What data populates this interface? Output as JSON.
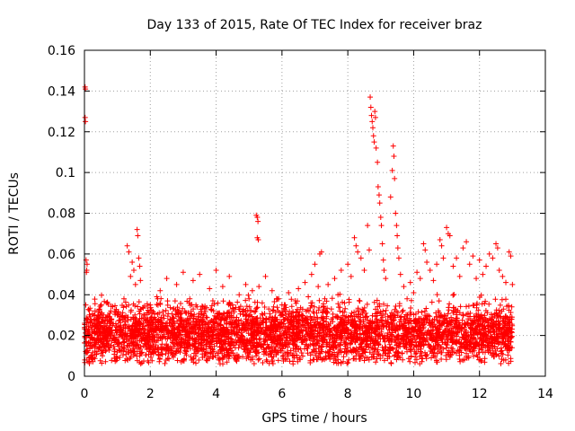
{
  "chart_data": {
    "type": "scatter",
    "title": "Day 133 of 2015, Rate Of TEC Index for receiver braz",
    "xlabel": "GPS time / hours",
    "ylabel": "ROTI / TECUs",
    "xlim": [
      0,
      14
    ],
    "ylim": [
      0,
      0.16
    ],
    "grid": true,
    "marker": "+",
    "color": "#ff0000",
    "x_ticks": [
      {
        "value": 0,
        "label": "0"
      },
      {
        "value": 2,
        "label": "2"
      },
      {
        "value": 4,
        "label": "4"
      },
      {
        "value": 6,
        "label": "6"
      },
      {
        "value": 8,
        "label": "8"
      },
      {
        "value": 10,
        "label": "10"
      },
      {
        "value": 12,
        "label": "12"
      },
      {
        "value": 14,
        "label": "14"
      }
    ],
    "y_ticks": [
      {
        "value": 0,
        "label": "0"
      },
      {
        "value": 0.02,
        "label": "0.02"
      },
      {
        "value": 0.04,
        "label": "0.04"
      },
      {
        "value": 0.06,
        "label": "0.06"
      },
      {
        "value": 0.08,
        "label": "0.08"
      },
      {
        "value": 0.1,
        "label": "0.1"
      },
      {
        "value": 0.12,
        "label": "0.12"
      },
      {
        "value": 0.14,
        "label": "0.14"
      },
      {
        "value": 0.16,
        "label": "0.16"
      }
    ],
    "series": [
      {
        "name": "ROTI",
        "points": [
          [
            0.02,
            0.142
          ],
          [
            0.03,
            0.141
          ],
          [
            0.02,
            0.127
          ],
          [
            0.03,
            0.125
          ],
          [
            0.05,
            0.057
          ],
          [
            0.08,
            0.055
          ],
          [
            0.06,
            0.051
          ],
          [
            0.07,
            0.052
          ],
          [
            0.04,
            0.035
          ],
          [
            0.1,
            0.028
          ],
          [
            0.2,
            0.024
          ],
          [
            0.3,
            0.03
          ],
          [
            0.4,
            0.022
          ],
          [
            0.5,
            0.035
          ],
          [
            0.6,
            0.02
          ],
          [
            0.7,
            0.027
          ],
          [
            0.8,
            0.032
          ],
          [
            0.9,
            0.018
          ],
          [
            1.0,
            0.03
          ],
          [
            1.1,
            0.025
          ],
          [
            1.2,
            0.038
          ],
          [
            1.3,
            0.064
          ],
          [
            1.35,
            0.061
          ],
          [
            1.4,
            0.049
          ],
          [
            1.45,
            0.056
          ],
          [
            1.5,
            0.052
          ],
          [
            1.55,
            0.045
          ],
          [
            1.6,
            0.072
          ],
          [
            1.62,
            0.069
          ],
          [
            1.65,
            0.058
          ],
          [
            1.68,
            0.054
          ],
          [
            1.7,
            0.047
          ],
          [
            1.8,
            0.03
          ],
          [
            1.9,
            0.026
          ],
          [
            2.0,
            0.035
          ],
          [
            2.1,
            0.022
          ],
          [
            2.2,
            0.039
          ],
          [
            2.3,
            0.042
          ],
          [
            2.4,
            0.03
          ],
          [
            2.5,
            0.048
          ],
          [
            2.6,
            0.028
          ],
          [
            2.7,
            0.033
          ],
          [
            2.8,
            0.045
          ],
          [
            2.9,
            0.026
          ],
          [
            3.0,
            0.051
          ],
          [
            3.1,
            0.031
          ],
          [
            3.2,
            0.038
          ],
          [
            3.3,
            0.047
          ],
          [
            3.4,
            0.027
          ],
          [
            3.5,
            0.05
          ],
          [
            3.6,
            0.034
          ],
          [
            3.7,
            0.029
          ],
          [
            3.8,
            0.043
          ],
          [
            3.9,
            0.037
          ],
          [
            4.0,
            0.052
          ],
          [
            4.1,
            0.031
          ],
          [
            4.2,
            0.044
          ],
          [
            4.3,
            0.028
          ],
          [
            4.4,
            0.049
          ],
          [
            4.5,
            0.035
          ],
          [
            4.6,
            0.026
          ],
          [
            4.7,
            0.04
          ],
          [
            4.8,
            0.032
          ],
          [
            4.9,
            0.045
          ],
          [
            5.0,
            0.038
          ],
          [
            5.1,
            0.042
          ],
          [
            5.22,
            0.079
          ],
          [
            5.25,
            0.078
          ],
          [
            5.27,
            0.076
          ],
          [
            5.25,
            0.068
          ],
          [
            5.28,
            0.067
          ],
          [
            5.3,
            0.044
          ],
          [
            5.4,
            0.036
          ],
          [
            5.5,
            0.049
          ],
          [
            5.6,
            0.033
          ],
          [
            5.7,
            0.042
          ],
          [
            5.8,
            0.029
          ],
          [
            5.9,
            0.038
          ],
          [
            6.0,
            0.035
          ],
          [
            6.1,
            0.028
          ],
          [
            6.2,
            0.041
          ],
          [
            6.3,
            0.031
          ],
          [
            6.4,
            0.037
          ],
          [
            6.5,
            0.043
          ],
          [
            6.6,
            0.03
          ],
          [
            6.7,
            0.046
          ],
          [
            6.8,
            0.039
          ],
          [
            6.9,
            0.05
          ],
          [
            7.0,
            0.055
          ],
          [
            7.1,
            0.044
          ],
          [
            7.15,
            0.06
          ],
          [
            7.2,
            0.061
          ],
          [
            7.3,
            0.038
          ],
          [
            7.4,
            0.045
          ],
          [
            7.5,
            0.033
          ],
          [
            7.6,
            0.048
          ],
          [
            7.7,
            0.04
          ],
          [
            7.8,
            0.052
          ],
          [
            7.9,
            0.036
          ],
          [
            8.0,
            0.055
          ],
          [
            8.1,
            0.049
          ],
          [
            8.2,
            0.068
          ],
          [
            8.25,
            0.064
          ],
          [
            8.3,
            0.061
          ],
          [
            8.4,
            0.058
          ],
          [
            8.5,
            0.052
          ],
          [
            8.6,
            0.074
          ],
          [
            8.65,
            0.062
          ],
          [
            8.68,
            0.137
          ],
          [
            8.7,
            0.132
          ],
          [
            8.72,
            0.128
          ],
          [
            8.74,
            0.125
          ],
          [
            8.76,
            0.122
          ],
          [
            8.78,
            0.118
          ],
          [
            8.8,
            0.115
          ],
          [
            8.82,
            0.13
          ],
          [
            8.84,
            0.127
          ],
          [
            8.86,
            0.112
          ],
          [
            8.9,
            0.105
          ],
          [
            8.92,
            0.093
          ],
          [
            8.95,
            0.089
          ],
          [
            8.97,
            0.085
          ],
          [
            9.0,
            0.078
          ],
          [
            9.02,
            0.074
          ],
          [
            9.05,
            0.065
          ],
          [
            9.08,
            0.057
          ],
          [
            9.1,
            0.052
          ],
          [
            9.15,
            0.048
          ],
          [
            9.3,
            0.088
          ],
          [
            9.35,
            0.101
          ],
          [
            9.38,
            0.113
          ],
          [
            9.4,
            0.108
          ],
          [
            9.42,
            0.097
          ],
          [
            9.45,
            0.08
          ],
          [
            9.48,
            0.074
          ],
          [
            9.5,
            0.069
          ],
          [
            9.52,
            0.063
          ],
          [
            9.55,
            0.058
          ],
          [
            9.6,
            0.05
          ],
          [
            9.7,
            0.044
          ],
          [
            9.8,
            0.038
          ],
          [
            9.9,
            0.046
          ],
          [
            10.0,
            0.041
          ],
          [
            10.1,
            0.051
          ],
          [
            10.2,
            0.048
          ],
          [
            10.3,
            0.065
          ],
          [
            10.35,
            0.062
          ],
          [
            10.4,
            0.056
          ],
          [
            10.5,
            0.052
          ],
          [
            10.6,
            0.047
          ],
          [
            10.7,
            0.055
          ],
          [
            10.8,
            0.067
          ],
          [
            10.85,
            0.064
          ],
          [
            10.9,
            0.058
          ],
          [
            11.0,
            0.073
          ],
          [
            11.05,
            0.07
          ],
          [
            11.1,
            0.069
          ],
          [
            11.2,
            0.054
          ],
          [
            11.3,
            0.058
          ],
          [
            11.4,
            0.049
          ],
          [
            11.5,
            0.063
          ],
          [
            11.6,
            0.066
          ],
          [
            11.7,
            0.055
          ],
          [
            11.8,
            0.059
          ],
          [
            11.9,
            0.048
          ],
          [
            12.0,
            0.057
          ],
          [
            12.1,
            0.05
          ],
          [
            12.2,
            0.054
          ],
          [
            12.3,
            0.06
          ],
          [
            12.4,
            0.058
          ],
          [
            12.5,
            0.065
          ],
          [
            12.55,
            0.063
          ],
          [
            12.6,
            0.052
          ],
          [
            12.7,
            0.049
          ],
          [
            12.8,
            0.046
          ],
          [
            12.9,
            0.061
          ],
          [
            12.95,
            0.059
          ],
          [
            13.0,
            0.045
          ]
        ]
      }
    ]
  }
}
